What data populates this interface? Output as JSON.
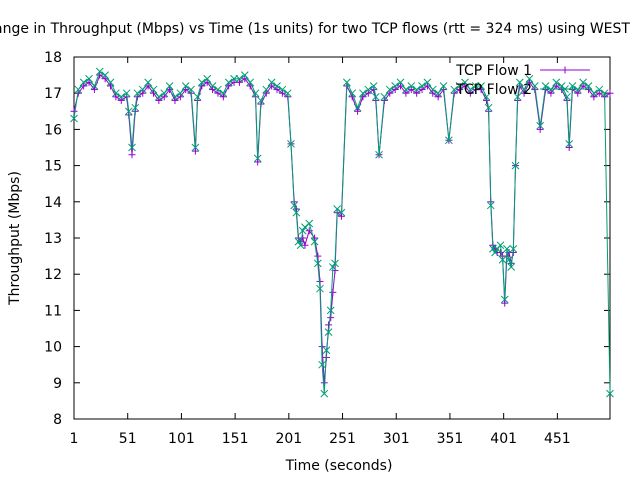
{
  "chart_data": {
    "type": "line",
    "title": "ange in Throughput (Mbps) vs Time (1s units) for two TCP flows (rtt = 324 ms) using WEST",
    "xlabel": "Time (seconds)",
    "ylabel": "Throughput (Mbps)",
    "xlim": [
      1,
      500
    ],
    "ylim": [
      8,
      18
    ],
    "xticks": [
      "1",
      "51",
      "101",
      "151",
      "201",
      "251",
      "301",
      "351",
      "401",
      "451"
    ],
    "yticks": [
      "8",
      "9",
      "10",
      "11",
      "12",
      "13",
      "14",
      "15",
      "16",
      "17",
      "18"
    ],
    "grid": false,
    "legend_position": "top-right",
    "series": [
      {
        "name": "TCP Flow 1",
        "color": "#9400d3",
        "marker": "+",
        "x": [
          1,
          5,
          10,
          15,
          20,
          25,
          30,
          35,
          40,
          45,
          50,
          52,
          55,
          58,
          60,
          65,
          70,
          75,
          80,
          85,
          90,
          95,
          100,
          105,
          110,
          114,
          116,
          120,
          125,
          130,
          135,
          140,
          145,
          150,
          155,
          160,
          165,
          170,
          172,
          175,
          180,
          185,
          190,
          195,
          200,
          203,
          206,
          208,
          210,
          212,
          214,
          216,
          220,
          225,
          228,
          230,
          232,
          234,
          236,
          238,
          240,
          242,
          244,
          246,
          250,
          255,
          260,
          265,
          270,
          275,
          280,
          282,
          285,
          290,
          295,
          300,
          305,
          310,
          315,
          320,
          325,
          330,
          335,
          340,
          345,
          350,
          355,
          360,
          365,
          370,
          375,
          380,
          385,
          387,
          389,
          391,
          393,
          395,
          398,
          400,
          402,
          404,
          406,
          408,
          410,
          412,
          414,
          416,
          420,
          425,
          430,
          435,
          440,
          445,
          450,
          455,
          460,
          462,
          465,
          470,
          475,
          480,
          485,
          490,
          495,
          500
        ],
        "values": [
          16.5,
          17.0,
          17.2,
          17.3,
          17.1,
          17.5,
          17.4,
          17.2,
          16.9,
          16.8,
          16.9,
          16.4,
          15.3,
          16.5,
          16.9,
          17.0,
          17.2,
          17.0,
          16.8,
          16.9,
          17.1,
          16.8,
          16.9,
          17.1,
          17.0,
          15.4,
          16.8,
          17.2,
          17.3,
          17.1,
          17.0,
          16.9,
          17.2,
          17.3,
          17.3,
          17.4,
          17.2,
          16.9,
          15.1,
          16.7,
          17.0,
          17.2,
          17.1,
          17.0,
          16.9,
          15.6,
          14.0,
          13.8,
          13.0,
          12.9,
          13.0,
          12.8,
          13.2,
          13.0,
          12.5,
          11.8,
          10.0,
          9.0,
          9.7,
          10.6,
          10.8,
          11.5,
          12.1,
          13.7,
          13.6,
          17.2,
          16.9,
          16.5,
          16.9,
          17.0,
          17.1,
          16.8,
          15.3,
          16.8,
          17.0,
          17.1,
          17.2,
          17.0,
          17.1,
          17.0,
          17.1,
          17.2,
          17.0,
          16.9,
          17.1,
          15.7,
          17.0,
          17.1,
          17.2,
          17.0,
          17.1,
          17.1,
          16.8,
          16.5,
          14.0,
          12.8,
          12.7,
          12.6,
          12.6,
          12.5,
          11.2,
          12.5,
          12.6,
          12.3,
          12.6,
          15.0,
          16.8,
          17.2,
          17.0,
          17.3,
          17.1,
          16.0,
          17.1,
          17.0,
          17.2,
          17.1,
          16.8,
          15.5,
          17.1,
          17.0,
          17.2,
          17.1,
          16.9,
          17.0,
          16.9,
          17.0
        ]
      },
      {
        "name": "TCP Flow 2",
        "color": "#009e73",
        "marker": "x",
        "x": [
          1,
          5,
          10,
          15,
          20,
          25,
          30,
          35,
          40,
          45,
          50,
          52,
          55,
          58,
          60,
          65,
          70,
          75,
          80,
          85,
          90,
          95,
          100,
          105,
          110,
          114,
          116,
          120,
          125,
          130,
          135,
          140,
          145,
          150,
          155,
          160,
          165,
          170,
          172,
          175,
          180,
          185,
          190,
          195,
          200,
          203,
          206,
          208,
          210,
          212,
          214,
          216,
          220,
          225,
          228,
          230,
          232,
          234,
          236,
          238,
          240,
          242,
          244,
          246,
          250,
          255,
          260,
          265,
          270,
          275,
          280,
          282,
          285,
          290,
          295,
          300,
          305,
          310,
          315,
          320,
          325,
          330,
          335,
          340,
          345,
          350,
          355,
          360,
          365,
          370,
          375,
          380,
          385,
          387,
          389,
          391,
          393,
          395,
          398,
          400,
          402,
          404,
          406,
          408,
          410,
          412,
          414,
          416,
          420,
          425,
          430,
          435,
          440,
          445,
          450,
          455,
          460,
          462,
          465,
          470,
          475,
          480,
          485,
          490,
          495,
          500
        ],
        "values": [
          16.3,
          17.1,
          17.3,
          17.4,
          17.2,
          17.6,
          17.5,
          17.3,
          17.0,
          16.9,
          17.0,
          16.5,
          15.5,
          16.6,
          17.0,
          17.1,
          17.3,
          17.1,
          16.9,
          17.0,
          17.2,
          16.9,
          17.0,
          17.2,
          17.1,
          15.5,
          16.9,
          17.3,
          17.4,
          17.2,
          17.1,
          17.0,
          17.3,
          17.4,
          17.4,
          17.5,
          17.3,
          17.0,
          15.2,
          16.8,
          17.1,
          17.3,
          17.2,
          17.1,
          17.0,
          15.6,
          13.9,
          13.7,
          12.9,
          12.8,
          13.2,
          13.3,
          13.4,
          12.9,
          12.3,
          11.6,
          9.5,
          8.7,
          9.9,
          10.4,
          11.0,
          12.2,
          12.3,
          13.8,
          13.7,
          17.3,
          17.0,
          16.6,
          17.0,
          17.1,
          17.2,
          16.9,
          15.3,
          16.9,
          17.1,
          17.2,
          17.3,
          17.1,
          17.2,
          17.1,
          17.2,
          17.3,
          17.1,
          17.0,
          17.2,
          15.7,
          17.1,
          17.2,
          17.3,
          17.1,
          17.2,
          17.2,
          16.9,
          16.6,
          13.9,
          12.7,
          12.6,
          12.7,
          12.8,
          12.4,
          11.3,
          12.7,
          12.4,
          12.2,
          12.7,
          15.0,
          16.9,
          17.3,
          17.1,
          17.4,
          17.2,
          16.1,
          17.2,
          17.1,
          17.3,
          17.2,
          16.9,
          15.6,
          17.2,
          17.1,
          17.3,
          17.2,
          17.0,
          17.1,
          17.0,
          8.7
        ]
      }
    ]
  }
}
